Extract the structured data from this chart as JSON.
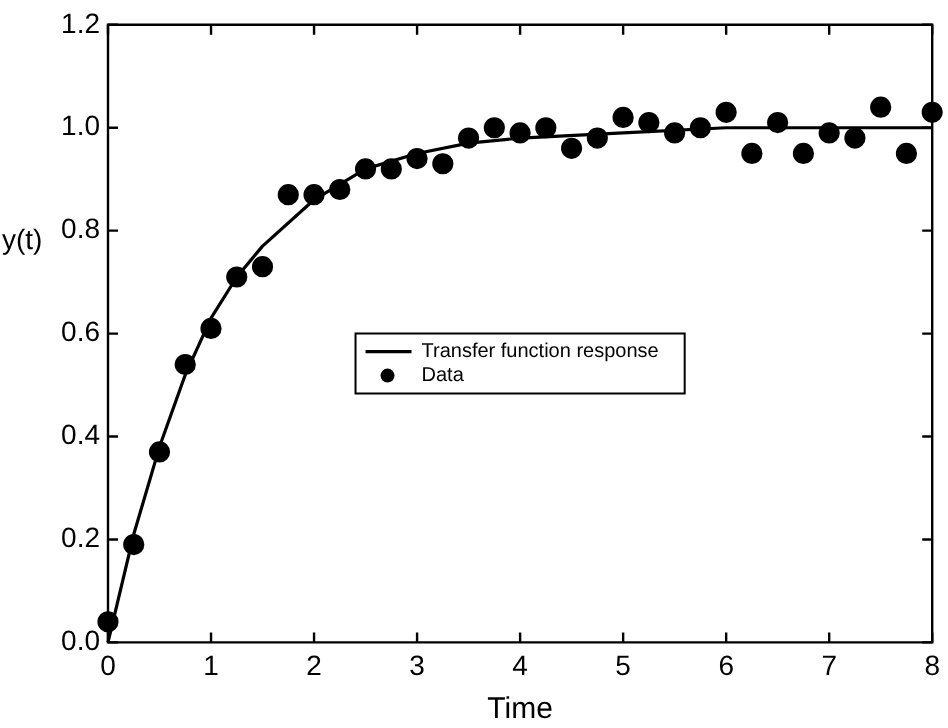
{
  "chart_data": {
    "type": "scatter",
    "xlabel": "Time",
    "ylabel": "y(t)",
    "xlim": [
      0,
      8
    ],
    "ylim": [
      0,
      1.2
    ],
    "xticks": [
      0,
      1,
      2,
      3,
      4,
      5,
      6,
      7,
      8
    ],
    "yticks": [
      {
        "value": 0,
        "label": "0.0"
      },
      {
        "value": 0.2,
        "label": "0.2"
      },
      {
        "value": 0.4,
        "label": "0.4"
      },
      {
        "value": 0.6,
        "label": "0.6"
      },
      {
        "value": 0.8,
        "label": "0.8"
      },
      {
        "value": 1,
        "label": "1.0"
      },
      {
        "value": 1.2,
        "label": "1.2"
      }
    ],
    "grid": false,
    "legend": "center",
    "series": [
      {
        "name": "Transfer function response",
        "type": "line",
        "color": "#000000",
        "marker": "none",
        "line_style": "solid",
        "x": [
          0,
          0.25,
          0.5,
          0.75,
          1,
          1.25,
          1.5,
          2,
          2.5,
          3,
          3.5,
          4,
          5,
          6,
          7,
          8
        ],
        "values": [
          0,
          0.21,
          0.38,
          0.52,
          0.63,
          0.71,
          0.77,
          0.86,
          0.92,
          0.95,
          0.97,
          0.98,
          0.99,
          1.0,
          1.0,
          1.0
        ]
      },
      {
        "name": "Data",
        "type": "scatter",
        "color": "#000000",
        "marker": "circle",
        "x": [
          0,
          0.25,
          0.5,
          0.75,
          1,
          1.25,
          1.5,
          1.75,
          2,
          2.25,
          2.5,
          2.75,
          3,
          3.25,
          3.5,
          3.75,
          4,
          4.25,
          4.5,
          4.75,
          5,
          5.25,
          5.5,
          5.75,
          6,
          6.25,
          6.5,
          6.75,
          7,
          7.25,
          7.5,
          7.75,
          8
        ],
        "values": [
          0.04,
          0.19,
          0.37,
          0.54,
          0.61,
          0.71,
          0.73,
          0.87,
          0.87,
          0.88,
          0.92,
          0.92,
          0.94,
          0.93,
          0.98,
          1.0,
          0.99,
          1.0,
          0.96,
          0.98,
          1.02,
          1.01,
          0.99,
          1.0,
          1.03,
          0.95,
          1.01,
          0.95,
          0.99,
          0.98,
          1.04,
          0.95,
          1.03
        ]
      }
    ]
  }
}
